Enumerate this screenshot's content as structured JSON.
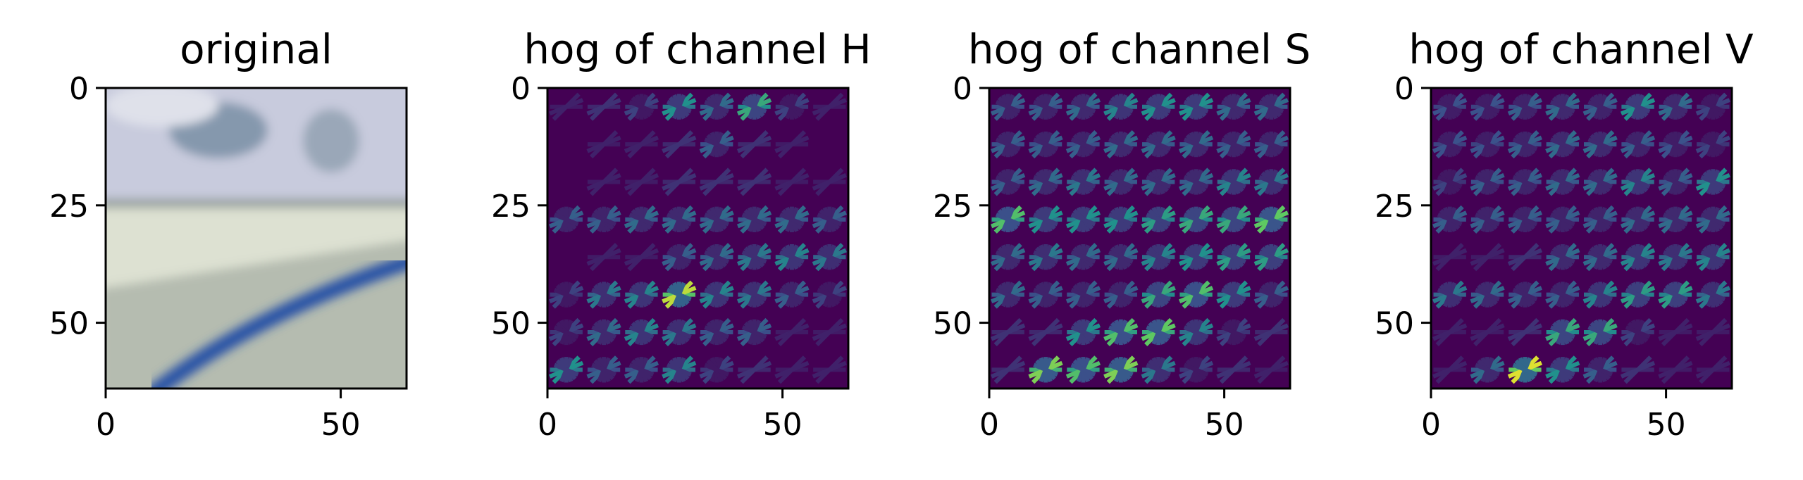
{
  "chart_data": [
    {
      "type": "heatmap",
      "title": "original",
      "image_kind": "photo-road-curb",
      "xlim": [
        0,
        64
      ],
      "ylim": [
        64,
        0
      ],
      "xticks": [
        0,
        50
      ],
      "yticks": [
        0,
        25,
        50
      ],
      "colors": {
        "sky": "#c9cde0",
        "cloud": "#7d93a8",
        "wall": "#dadfd0",
        "road": "#b4bcb0",
        "line": "#2a52a6"
      }
    },
    {
      "type": "heatmap",
      "title": "hog of channel H",
      "colormap": "viridis",
      "xlim": [
        0,
        64
      ],
      "ylim": [
        64,
        0
      ],
      "xticks": [
        0,
        50
      ],
      "yticks": [
        0,
        25,
        50
      ],
      "cells": [
        [
          0.1,
          0.15,
          0.2,
          0.5,
          0.35,
          0.6,
          0.2,
          0.1
        ],
        [
          0.05,
          0.1,
          0.1,
          0.15,
          0.3,
          0.15,
          0.1,
          0.05
        ],
        [
          0.05,
          0.1,
          0.1,
          0.15,
          0.15,
          0.15,
          0.1,
          0.1
        ],
        [
          0.3,
          0.3,
          0.35,
          0.35,
          0.35,
          0.35,
          0.35,
          0.3
        ],
        [
          0.05,
          0.1,
          0.1,
          0.3,
          0.35,
          0.4,
          0.45,
          0.4
        ],
        [
          0.2,
          0.4,
          0.45,
          0.9,
          0.45,
          0.4,
          0.3,
          0.2
        ],
        [
          0.2,
          0.35,
          0.45,
          0.4,
          0.3,
          0.3,
          0.1,
          0.1
        ],
        [
          0.5,
          0.3,
          0.3,
          0.45,
          0.2,
          0.15,
          0.1,
          0.1
        ]
      ]
    },
    {
      "type": "heatmap",
      "title": "hog of channel S",
      "colormap": "viridis",
      "xlim": [
        0,
        64
      ],
      "ylim": [
        64,
        0
      ],
      "xticks": [
        0,
        50
      ],
      "yticks": [
        0,
        25,
        50
      ],
      "cells": [
        [
          0.3,
          0.3,
          0.35,
          0.45,
          0.5,
          0.5,
          0.35,
          0.35
        ],
        [
          0.3,
          0.3,
          0.3,
          0.35,
          0.35,
          0.35,
          0.3,
          0.3
        ],
        [
          0.3,
          0.35,
          0.4,
          0.35,
          0.35,
          0.35,
          0.45,
          0.4
        ],
        [
          0.7,
          0.5,
          0.5,
          0.5,
          0.55,
          0.6,
          0.6,
          0.75
        ],
        [
          0.35,
          0.4,
          0.35,
          0.35,
          0.45,
          0.5,
          0.55,
          0.55
        ],
        [
          0.35,
          0.3,
          0.3,
          0.3,
          0.6,
          0.7,
          0.5,
          0.3
        ],
        [
          0.15,
          0.15,
          0.5,
          0.7,
          0.75,
          0.45,
          0.2,
          0.15
        ],
        [
          0.15,
          0.8,
          0.7,
          0.8,
          0.4,
          0.2,
          0.15,
          0.1
        ]
      ]
    },
    {
      "type": "heatmap",
      "title": "hog of channel V",
      "colormap": "viridis",
      "xlim": [
        0,
        64
      ],
      "ylim": [
        64,
        0
      ],
      "xticks": [
        0,
        50
      ],
      "yticks": [
        0,
        25,
        50
      ],
      "cells": [
        [
          0.25,
          0.25,
          0.3,
          0.35,
          0.3,
          0.5,
          0.35,
          0.2
        ],
        [
          0.25,
          0.25,
          0.3,
          0.35,
          0.35,
          0.3,
          0.25,
          0.2
        ],
        [
          0.2,
          0.3,
          0.3,
          0.35,
          0.35,
          0.45,
          0.3,
          0.5
        ],
        [
          0.3,
          0.3,
          0.3,
          0.3,
          0.3,
          0.35,
          0.35,
          0.35
        ],
        [
          0.1,
          0.1,
          0.15,
          0.35,
          0.35,
          0.45,
          0.4,
          0.45
        ],
        [
          0.4,
          0.35,
          0.3,
          0.3,
          0.45,
          0.55,
          0.55,
          0.4
        ],
        [
          0.1,
          0.1,
          0.15,
          0.6,
          0.6,
          0.2,
          0.1,
          0.1
        ],
        [
          0.1,
          0.35,
          0.95,
          0.5,
          0.3,
          0.15,
          0.1,
          0.1
        ]
      ]
    }
  ]
}
